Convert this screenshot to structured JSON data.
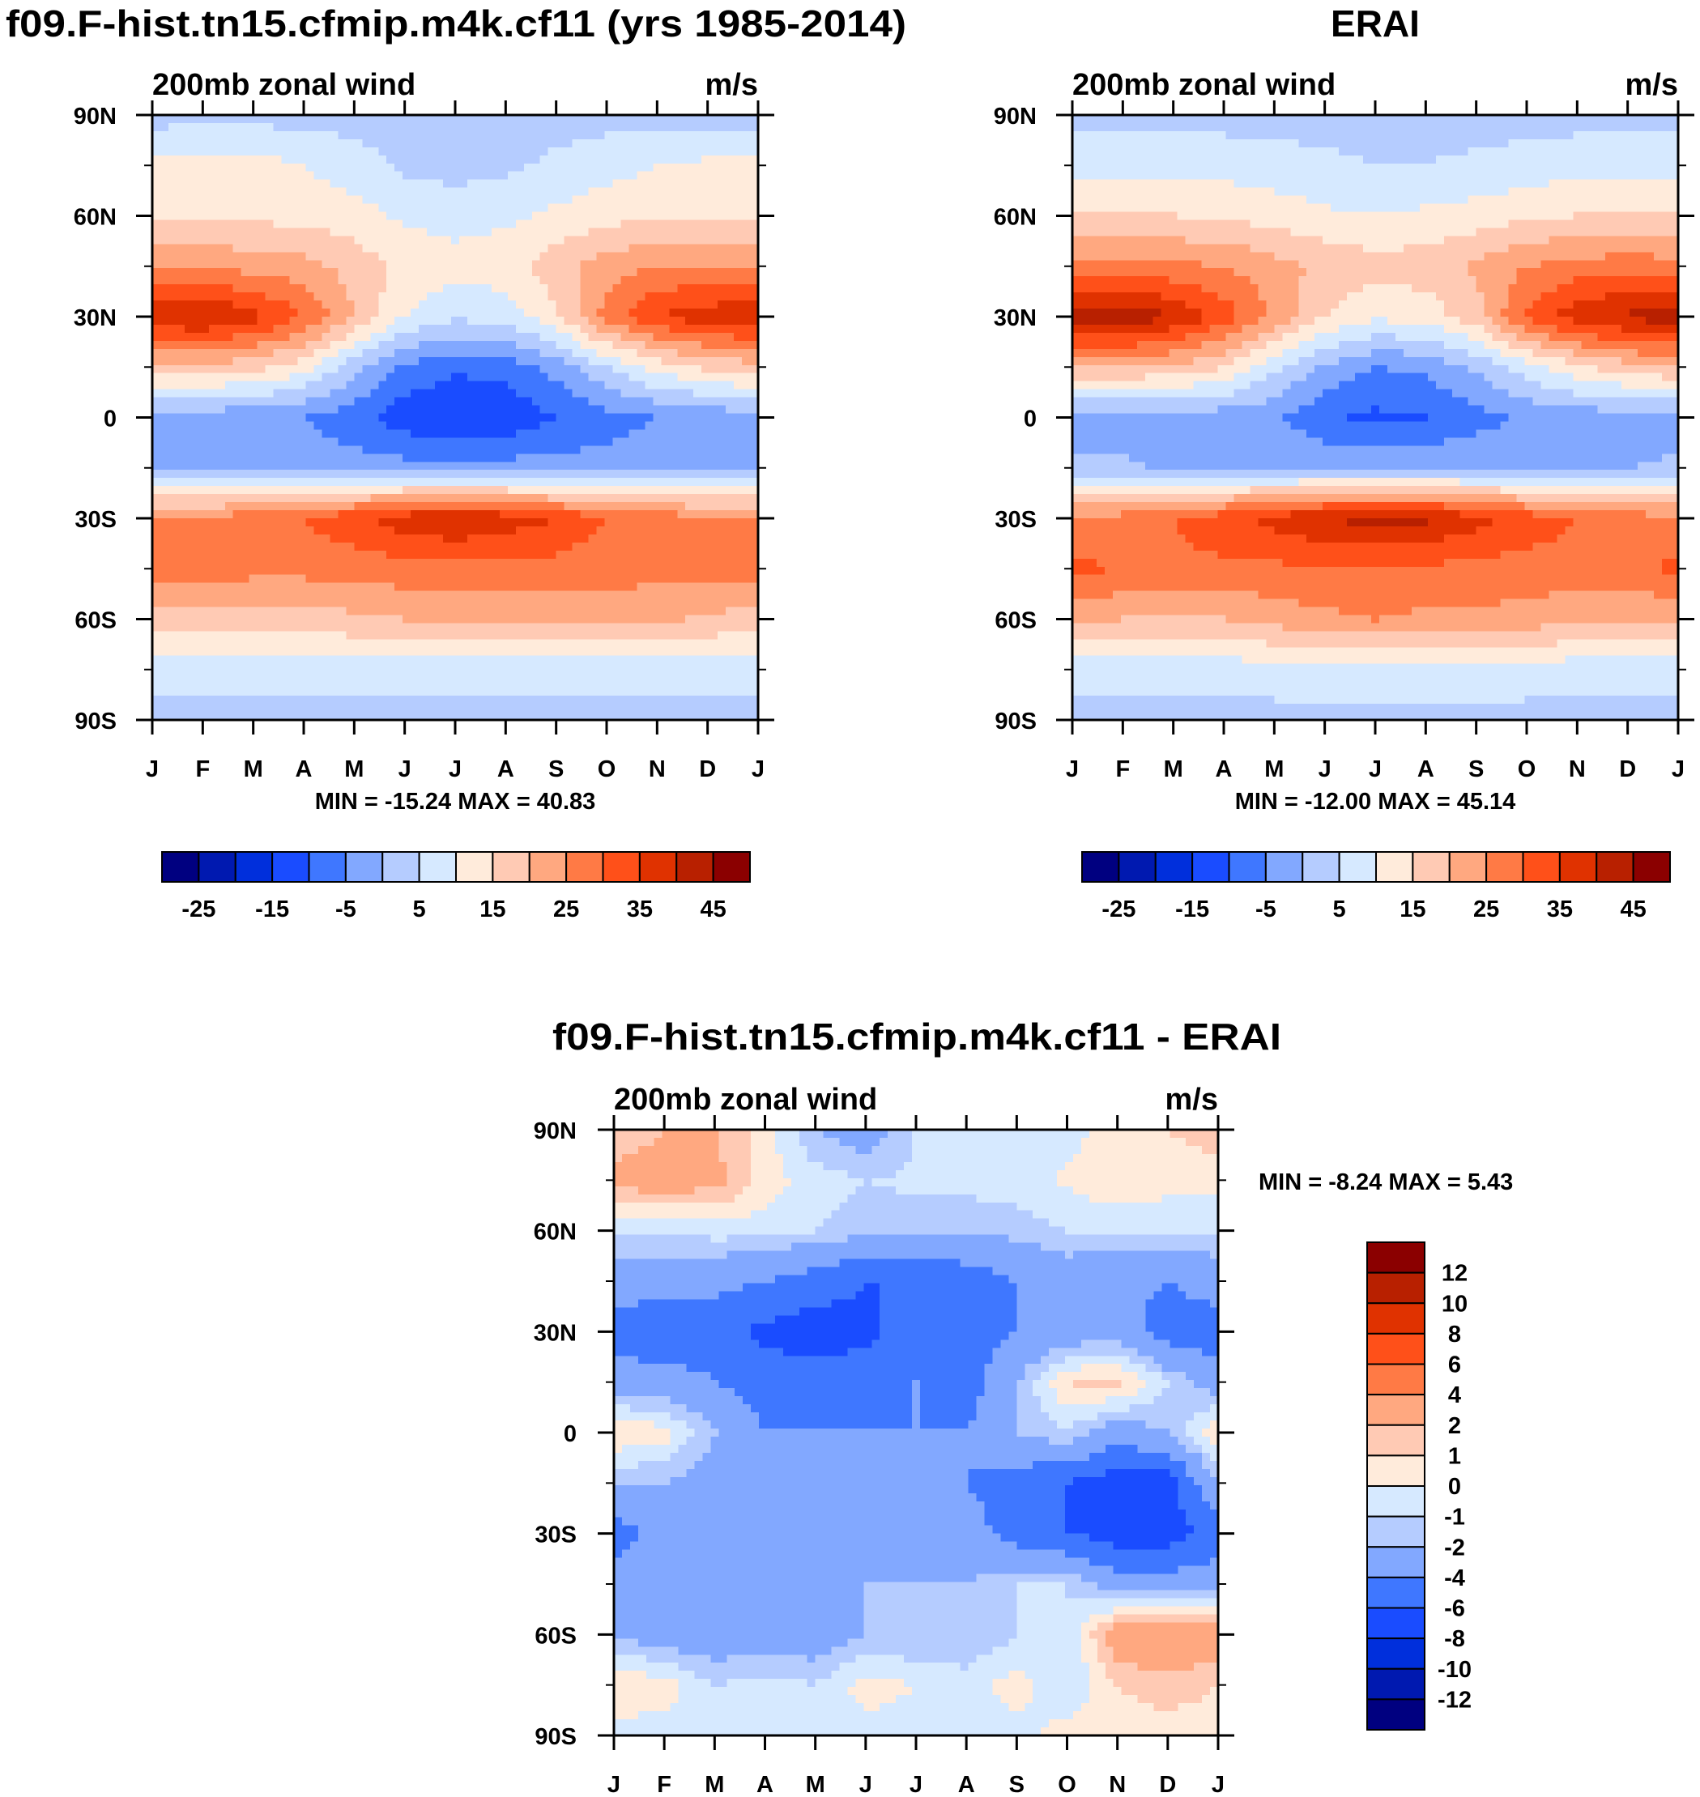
{
  "chart_data": [
    {
      "type": "heatmap",
      "id": "model",
      "title": "f09.F-hist.tn15.cfmip.m4k.cf11 (yrs 1985-2014)",
      "subtitle_left": "200mb zonal wind",
      "subtitle_right": "m/s",
      "stats": "MIN = -15.24 MAX =  40.83",
      "x_ticks": [
        "J",
        "F",
        "M",
        "A",
        "M",
        "J",
        "J",
        "A",
        "S",
        "O",
        "N",
        "D",
        "J"
      ],
      "y_ticks": [
        "90N",
        "60N",
        "30N",
        "0",
        "30S",
        "60S",
        "90S"
      ],
      "lats": [
        90,
        75,
        60,
        45,
        30,
        15,
        0,
        -15,
        -30,
        -45,
        -60,
        -75,
        -90
      ],
      "values": [
        [
          3,
          3,
          3,
          3,
          3,
          3,
          3,
          3,
          3,
          3,
          3,
          3,
          3
        ],
        [
          11,
          12,
          12,
          10,
          7,
          4,
          3,
          4,
          6,
          8,
          10,
          11,
          11
        ],
        [
          14,
          14,
          14,
          13,
          12,
          9,
          8,
          9,
          11,
          13,
          14,
          14,
          14
        ],
        [
          24,
          24,
          23,
          22,
          18,
          14,
          12,
          13,
          18,
          23,
          25,
          25,
          24
        ],
        [
          39,
          41,
          37,
          30,
          20,
          10,
          6,
          7,
          14,
          27,
          35,
          38,
          39
        ],
        [
          18,
          18,
          17,
          12,
          2,
          -6,
          -9,
          -8,
          -3,
          5,
          12,
          16,
          18
        ],
        [
          -2,
          -3,
          -4,
          -5,
          -8,
          -13,
          -15,
          -14,
          -10,
          -7,
          -5,
          -4,
          -2
        ],
        [
          0,
          -1,
          -2,
          -2,
          -3,
          -3,
          -3,
          -3,
          -3,
          -3,
          -2,
          -1,
          0
        ],
        [
          25,
          26,
          28,
          30,
          34,
          38,
          40,
          38,
          35,
          30,
          28,
          26,
          25
        ],
        [
          27,
          27,
          27,
          27,
          27,
          28,
          28,
          28,
          28,
          27,
          27,
          27,
          27
        ],
        [
          18,
          18,
          17,
          17,
          19,
          20,
          21,
          21,
          22,
          22,
          21,
          19,
          18
        ],
        [
          7,
          7,
          7,
          7,
          7,
          7,
          7,
          7,
          7,
          7,
          7,
          7,
          7
        ],
        [
          3,
          3,
          3,
          3,
          3,
          3,
          3,
          3,
          3,
          3,
          3,
          3,
          3
        ]
      ],
      "colorbar": {
        "levels": [
          -25,
          -20,
          -15,
          -10,
          -5,
          0,
          5,
          10,
          15,
          20,
          25,
          30,
          35,
          40,
          45
        ],
        "labels": [
          "-25",
          "-15",
          "-5",
          "5",
          "15",
          "25",
          "35",
          "45"
        ]
      }
    },
    {
      "type": "heatmap",
      "id": "obs",
      "title": "ERAI",
      "subtitle_left": "200mb zonal wind",
      "subtitle_right": "m/s",
      "stats": "MIN = -12.00 MAX =  45.14",
      "x_ticks": [
        "J",
        "F",
        "M",
        "A",
        "M",
        "J",
        "J",
        "A",
        "S",
        "O",
        "N",
        "D",
        "J"
      ],
      "y_ticks": [
        "90N",
        "60N",
        "30N",
        "0",
        "30S",
        "60S",
        "90S"
      ],
      "lats": [
        90,
        75,
        60,
        45,
        30,
        15,
        0,
        -15,
        -30,
        -45,
        -60,
        -75,
        -90
      ],
      "values": [
        [
          3,
          3,
          3,
          3,
          3,
          3,
          3,
          3,
          3,
          3,
          3,
          3,
          3
        ],
        [
          8,
          8,
          8,
          8,
          7,
          6,
          5,
          5,
          6,
          7,
          8,
          8,
          8
        ],
        [
          15,
          15,
          15,
          14,
          13,
          11,
          10,
          11,
          12,
          14,
          15,
          15,
          15
        ],
        [
          27,
          27,
          26,
          25,
          22,
          19,
          17,
          18,
          21,
          25,
          27,
          28,
          27
        ],
        [
          43,
          44,
          40,
          33,
          24,
          15,
          11,
          12,
          18,
          31,
          38,
          41,
          43
        ],
        [
          20,
          20,
          19,
          15,
          6,
          -1,
          -5,
          -4,
          1,
          8,
          14,
          18,
          20
        ],
        [
          -2,
          -3,
          -3,
          -3,
          -4,
          -9,
          -11,
          -10,
          -7,
          -4,
          -3,
          -3,
          -2
        ],
        [
          1,
          1,
          -1,
          -1,
          -1,
          -1,
          -1,
          -1,
          -1,
          -1,
          -1,
          0,
          1
        ],
        [
          26,
          27,
          30,
          33,
          37,
          40,
          42,
          41,
          37,
          33,
          30,
          28,
          26
        ],
        [
          31,
          30,
          29,
          29,
          29,
          29,
          29,
          29,
          28,
          28,
          28,
          29,
          31
        ],
        [
          21,
          20,
          19,
          20,
          22,
          24,
          25,
          24,
          24,
          23,
          21,
          20,
          21
        ],
        [
          7,
          7,
          7,
          7,
          8,
          8,
          8,
          8,
          8,
          8,
          7,
          7,
          7
        ],
        [
          3,
          3,
          3,
          3,
          3,
          3,
          3,
          3,
          3,
          3,
          3,
          3,
          3
        ]
      ],
      "colorbar": {
        "levels": [
          -25,
          -20,
          -15,
          -10,
          -5,
          0,
          5,
          10,
          15,
          20,
          25,
          30,
          35,
          40,
          45
        ],
        "labels": [
          "-25",
          "-15",
          "-5",
          "5",
          "15",
          "25",
          "35",
          "45"
        ]
      }
    },
    {
      "type": "heatmap",
      "id": "diff",
      "title": "f09.F-hist.tn15.cfmip.m4k.cf11 - ERAI",
      "subtitle_left": "200mb zonal wind",
      "subtitle_right": "m/s",
      "stats": "MIN =  -8.24 MAX =   5.43",
      "x_ticks": [
        "J",
        "F",
        "M",
        "A",
        "M",
        "J",
        "J",
        "A",
        "S",
        "O",
        "N",
        "D",
        "J"
      ],
      "y_ticks": [
        "90N",
        "60N",
        "30N",
        "0",
        "30S",
        "60S",
        "90S"
      ],
      "lats": [
        90,
        75,
        60,
        45,
        30,
        15,
        0,
        -15,
        -30,
        -45,
        -60,
        -75,
        -90
      ],
      "values": [
        [
          1,
          2,
          2,
          0.5,
          -2,
          -3,
          -1,
          -0.5,
          -0.5,
          -0.5,
          0.5,
          1,
          1.5
        ],
        [
          2.5,
          3,
          2.5,
          0.5,
          -0.5,
          -1,
          -0.8,
          -0.5,
          -0.5,
          0.2,
          1,
          0.5,
          0.5
        ],
        [
          -1,
          -1,
          -0.5,
          -0.5,
          -1,
          -1.5,
          -1.5,
          -2,
          -1.5,
          -1,
          -1,
          -1,
          -1
        ],
        [
          -3,
          -3,
          -3.5,
          -4,
          -5,
          -6,
          -6,
          -5,
          -4,
          -3,
          -3.5,
          -4,
          -3
        ],
        [
          -5,
          -5.5,
          -5,
          -6.5,
          -7,
          -6.5,
          -5,
          -5,
          -4,
          -3,
          -3,
          -5,
          -5
        ],
        [
          -3,
          -3,
          -4,
          -5,
          -5,
          -5,
          -4,
          -5,
          -2,
          1,
          1.5,
          -1,
          -3
        ],
        [
          1,
          0.5,
          -2,
          -4,
          -4,
          -4,
          -4,
          -4,
          -2,
          -1,
          -3,
          -2,
          1
        ],
        [
          -2,
          -2,
          -3,
          -4,
          -4,
          -4,
          -4,
          -4,
          -5,
          -6,
          -7,
          -7,
          -2
        ],
        [
          -5,
          -3,
          -3,
          -3,
          -3,
          -3,
          -3,
          -3,
          -5,
          -6,
          -7,
          -7,
          -5
        ],
        [
          -3,
          -3,
          -3,
          -2,
          -3,
          -2,
          -2,
          -2,
          -1,
          -1,
          -3,
          -3,
          -3
        ],
        [
          -2,
          -3,
          -3,
          -3,
          -3,
          -2,
          -2,
          -2,
          -1,
          -1,
          3,
          4,
          3
        ],
        [
          1,
          0.5,
          -1,
          -0.5,
          -1,
          0.5,
          0,
          -0.5,
          0.5,
          -1,
          1,
          1.5,
          1
        ],
        [
          -0.5,
          -0.5,
          -0.5,
          -0.5,
          -0.5,
          -0.5,
          -0.5,
          -0.5,
          -0.5,
          0.5,
          0.5,
          0.5,
          0.5
        ]
      ],
      "colorbar": {
        "levels": [
          -12,
          -10,
          -8,
          -6,
          -4,
          -2,
          -1,
          0,
          1,
          2,
          4,
          6,
          8,
          10,
          12
        ],
        "labels": [
          "-12",
          "-10",
          "-8",
          "-6",
          "-4",
          "-2",
          "-1",
          "0",
          "1",
          "2",
          "4",
          "6",
          "8",
          "10",
          "12"
        ]
      }
    }
  ],
  "colors": [
    "#000080",
    "#0019b0",
    "#002fdc",
    "#1a4cff",
    "#3f77ff",
    "#82a8ff",
    "#b5ccff",
    "#d6e9ff",
    "#ffebdb",
    "#ffcab4",
    "#ffa880",
    "#ff7a45",
    "#ff5019",
    "#e03200",
    "#b82000",
    "#8b0000"
  ]
}
